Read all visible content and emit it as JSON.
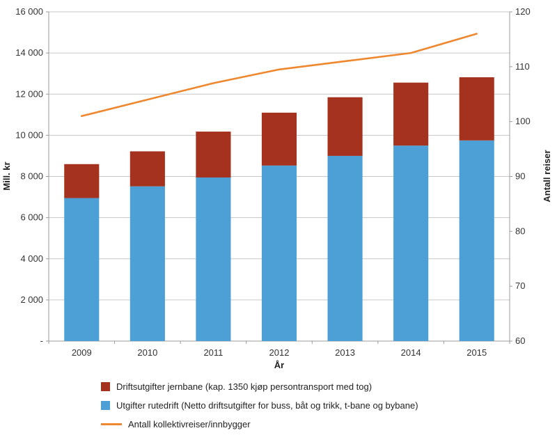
{
  "chart_data": {
    "type": "bar",
    "subtype": "stacked-bar-with-line",
    "title": "",
    "categories": [
      "2009",
      "2010",
      "2011",
      "2012",
      "2013",
      "2014",
      "2015"
    ],
    "bar_series": [
      {
        "name": "Utgifter rutedrift (Netto driftsutgifter for buss, båt og trikk, t-bane og bybane)",
        "color": "#4DA0D5",
        "axis": "left",
        "values": [
          6950,
          7520,
          7950,
          8530,
          9000,
          9500,
          9750
        ]
      },
      {
        "name": "Driftsutgifter jernbane (kap. 1350 kjøp persontransport med tog)",
        "color": "#A5321E",
        "axis": "left",
        "values": [
          1650,
          1700,
          2230,
          2570,
          2850,
          3060,
          3070
        ]
      }
    ],
    "line_series": [
      {
        "name": "Antall kollektivreiser/innbygger",
        "color": "#EF872E",
        "axis": "right",
        "values": [
          101,
          104,
          107,
          109.5,
          111,
          112.5,
          116
        ]
      }
    ],
    "left_axis": {
      "label": "Mill. kr",
      "min": 0,
      "max": 16000,
      "step": 2000,
      "tick_labels": [
        "-",
        "2 000",
        "4 000",
        "6 000",
        "8 000",
        "10 000",
        "12 000",
        "14 000",
        "16 000"
      ]
    },
    "right_axis": {
      "label": "Antall reiser",
      "min": 60,
      "max": 120,
      "step": 10,
      "tick_labels": [
        "60",
        "70",
        "80",
        "90",
        "100",
        "110",
        "120"
      ]
    },
    "x_axis": {
      "label": "År"
    },
    "grid": true,
    "legend_position": "bottom-left",
    "legend": [
      {
        "type": "rect",
        "color": "#A5321E",
        "label": "Driftsutgifter jernbane (kap. 1350 kjøp persontransport med tog)"
      },
      {
        "type": "rect",
        "color": "#4DA0D5",
        "label": "Utgifter rutedrift (Netto driftsutgifter for buss, båt og trikk, t-bane og bybane)"
      },
      {
        "type": "line",
        "color": "#EF872E",
        "label": "Antall kollektivreiser/innbygger"
      }
    ],
    "colors": {
      "gridline": "#C6C6C6",
      "axis_frame": "#9B9B9B",
      "tick_text": "#333333"
    }
  }
}
